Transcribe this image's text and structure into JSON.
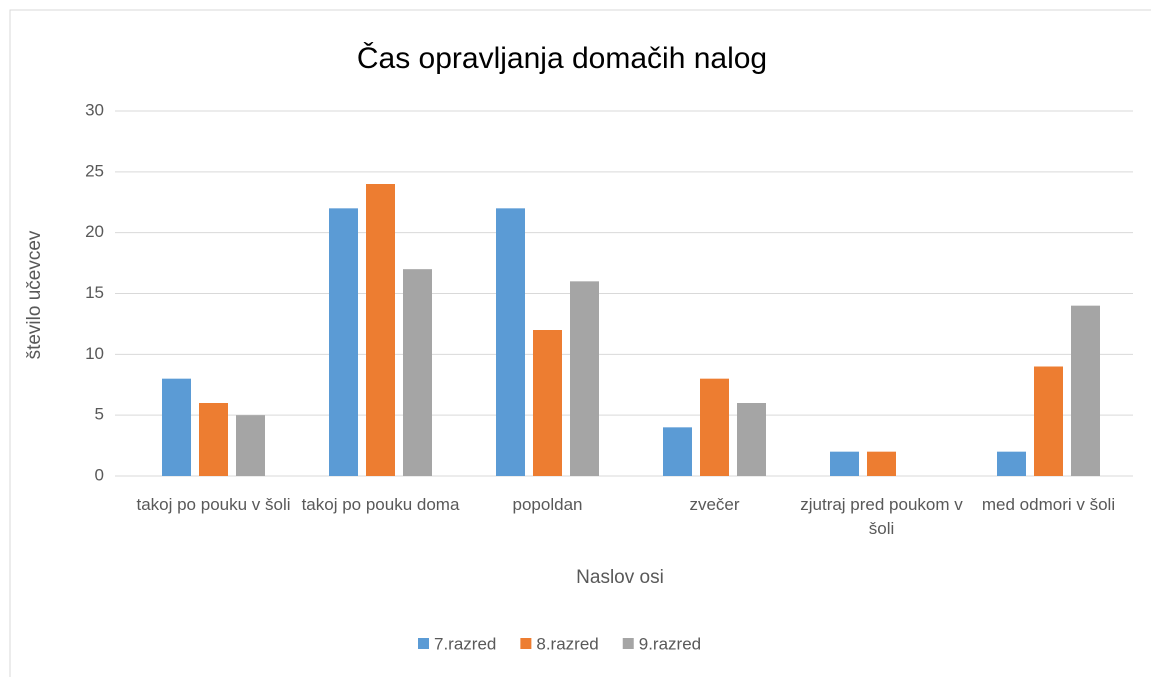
{
  "chart_data": {
    "type": "bar",
    "title": "Čas opravljanja domačih nalog",
    "x_label": "Naslov osi",
    "y_label": "število učevcev",
    "categories": [
      "takoj po pouku v šoli",
      "takoj po pouku doma",
      "popoldan",
      "zvečer",
      "zjutraj pred poukom v šoli",
      "med odmori v šoli"
    ],
    "series": [
      {
        "name": "7.razred",
        "color": "#5b9bd5",
        "values": [
          8,
          22,
          22,
          4,
          2,
          2
        ]
      },
      {
        "name": "8.razred",
        "color": "#ed7d31",
        "values": [
          6,
          24,
          12,
          8,
          2,
          9
        ]
      },
      {
        "name": "9.razred",
        "color": "#a5a5a5",
        "values": [
          5,
          17,
          16,
          6,
          0,
          14
        ]
      }
    ],
    "ylim": [
      0,
      30
    ],
    "yticks": [
      0,
      5,
      10,
      15,
      20,
      25,
      30
    ],
    "grid": true,
    "legend": "bottom"
  }
}
